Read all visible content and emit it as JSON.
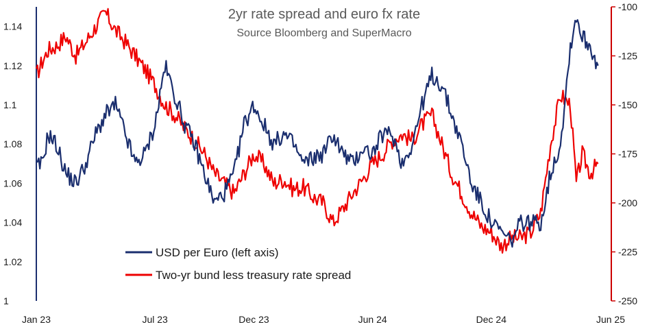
{
  "chart_data": {
    "type": "line",
    "title": "2yr rate spread and euro fx rate",
    "subtitle": "Source Bloomberg and SuperMacro",
    "x_tick_labels": [
      "Jan 23",
      "Jul 23",
      "Dec 23",
      "Jun 24",
      "Dec 24",
      "Jun 25"
    ],
    "y_left": {
      "range": [
        1.0,
        1.15
      ],
      "ticks": [
        "1",
        "1.02",
        "1.04",
        "1.06",
        "1.08",
        "1.1",
        "1.12",
        "1.14"
      ],
      "tick_values": [
        1.0,
        1.02,
        1.04,
        1.06,
        1.08,
        1.1,
        1.12,
        1.14
      ]
    },
    "y_right": {
      "range": [
        -250,
        -100
      ],
      "ticks": [
        "-100",
        "-125",
        "-150",
        "-175",
        "-200",
        "-225",
        "-250"
      ],
      "tick_values": [
        -100,
        -125,
        -150,
        -175,
        -200,
        -225,
        -250
      ]
    },
    "x_tick_months": [
      0,
      6,
      11,
      17,
      23,
      29
    ],
    "x_range_months": [
      0,
      29
    ],
    "colors": {
      "usd_euro": "#1a2e6e",
      "spread": "#ee0000",
      "right_axis": "#cc0000",
      "left_axis": "#1a2e6e"
    },
    "series": [
      {
        "name": "USD per Euro (left axis)",
        "axis": "left",
        "x": [
          0,
          0.3,
          0.6,
          1,
          1.5,
          2,
          2.5,
          3,
          3.5,
          4,
          4.5,
          5,
          5.5,
          6,
          6.5,
          7,
          7.5,
          8,
          8.5,
          9,
          9.5,
          10,
          10.5,
          11,
          11.5,
          12,
          12.5,
          13,
          13.5,
          14,
          14.5,
          15,
          15.5,
          16,
          16.5,
          17,
          17.5,
          18,
          18.5,
          19,
          19.5,
          20,
          20.5,
          21,
          21.5,
          22,
          22.5,
          23,
          23.5,
          24,
          24.5,
          25,
          25.5,
          26,
          26.5,
          27,
          27.3,
          27.6,
          28,
          28.4
        ],
        "values": [
          1.068,
          1.07,
          1.085,
          1.08,
          1.065,
          1.06,
          1.07,
          1.085,
          1.095,
          1.1,
          1.085,
          1.07,
          1.075,
          1.09,
          1.12,
          1.105,
          1.09,
          1.08,
          1.065,
          1.05,
          1.055,
          1.065,
          1.09,
          1.1,
          1.09,
          1.08,
          1.085,
          1.08,
          1.07,
          1.073,
          1.075,
          1.085,
          1.075,
          1.07,
          1.078,
          1.075,
          1.085,
          1.085,
          1.07,
          1.08,
          1.1,
          1.115,
          1.11,
          1.095,
          1.08,
          1.06,
          1.05,
          1.04,
          1.035,
          1.03,
          1.04,
          1.04,
          1.04,
          1.065,
          1.08,
          1.13,
          1.145,
          1.135,
          1.13,
          1.12
        ]
      },
      {
        "name": "Two-yr bund less treasury rate spread",
        "axis": "right",
        "x": [
          0,
          0.3,
          0.6,
          1,
          1.5,
          2,
          2.5,
          3,
          3.5,
          4,
          4.5,
          5,
          5.5,
          6,
          6.5,
          7,
          7.5,
          8,
          8.5,
          9,
          9.5,
          10,
          10.5,
          11,
          11.5,
          12,
          12.5,
          13,
          13.5,
          14,
          14.5,
          15,
          15.5,
          16,
          16.5,
          17,
          17.5,
          18,
          18.5,
          19,
          19.5,
          20,
          20.5,
          21,
          21.5,
          22,
          22.5,
          23,
          23.5,
          24,
          24.5,
          25,
          25.5,
          26,
          26.5,
          27,
          27.3,
          27.6,
          28,
          28.4
        ],
        "values": [
          -135,
          -128,
          -122,
          -120,
          -115,
          -125,
          -118,
          -110,
          -103,
          -112,
          -118,
          -125,
          -132,
          -140,
          -150,
          -155,
          -162,
          -168,
          -175,
          -185,
          -190,
          -195,
          -185,
          -175,
          -180,
          -190,
          -188,
          -193,
          -192,
          -197,
          -200,
          -210,
          -203,
          -195,
          -188,
          -180,
          -175,
          -168,
          -165,
          -168,
          -160,
          -155,
          -170,
          -185,
          -195,
          -205,
          -212,
          -215,
          -222,
          -218,
          -218,
          -215,
          -205,
          -170,
          -145,
          -150,
          -190,
          -175,
          -185,
          -180
        ]
      }
    ],
    "legend": {
      "position": "lower-left"
    }
  }
}
